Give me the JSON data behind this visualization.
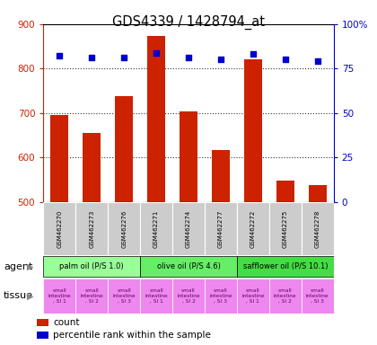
{
  "title": "GDS4339 / 1428794_at",
  "samples": [
    "GSM462270",
    "GSM462273",
    "GSM462276",
    "GSM462271",
    "GSM462274",
    "GSM462277",
    "GSM462272",
    "GSM462275",
    "GSM462278"
  ],
  "counts": [
    695,
    655,
    738,
    873,
    703,
    617,
    820,
    548,
    538
  ],
  "percentiles": [
    82,
    81,
    81,
    84,
    81,
    80,
    83,
    80,
    79
  ],
  "ylim_left": [
    500,
    900
  ],
  "ylim_right": [
    0,
    100
  ],
  "yticks_left": [
    500,
    600,
    700,
    800,
    900
  ],
  "yticks_right": [
    0,
    25,
    50,
    75,
    100
  ],
  "bar_color": "#cc2200",
  "dot_color": "#0000cc",
  "bar_width": 0.55,
  "agent_groups": [
    {
      "label": "palm oil (P/S 1.0)",
      "indices": [
        0,
        1,
        2
      ],
      "color": "#99ff99"
    },
    {
      "label": "olive oil (P/S 4.6)",
      "indices": [
        3,
        4,
        5
      ],
      "color": "#66ee66"
    },
    {
      "label": "safflower oil (P/S 10.1)",
      "indices": [
        6,
        7,
        8
      ],
      "color": "#44dd44"
    }
  ],
  "tissue_labels": [
    "small\nintestine\n, SI 1",
    "small\nintestine\n, SI 2",
    "small\nintestine\n, SI 3",
    "small\nintestine\n, SI 1",
    "small\nintestine\n, SI 2",
    "small\nintestine\n, SI 3",
    "small\nintestine\n, SI 1",
    "small\nintestine\n, SI 2",
    "small\nintestine\n, SI 3"
  ],
  "tissue_color": "#ee88ee",
  "agent_label": "agent",
  "tissue_label": "tissue",
  "legend_count_label": "count",
  "legend_pct_label": "percentile rank within the sample",
  "grid_color": "#333333",
  "background_color": "#ffffff",
  "left_tick_color": "#cc2200",
  "right_tick_color": "#0000cc",
  "sample_box_color": "#cccccc",
  "frame_color": "#000000"
}
